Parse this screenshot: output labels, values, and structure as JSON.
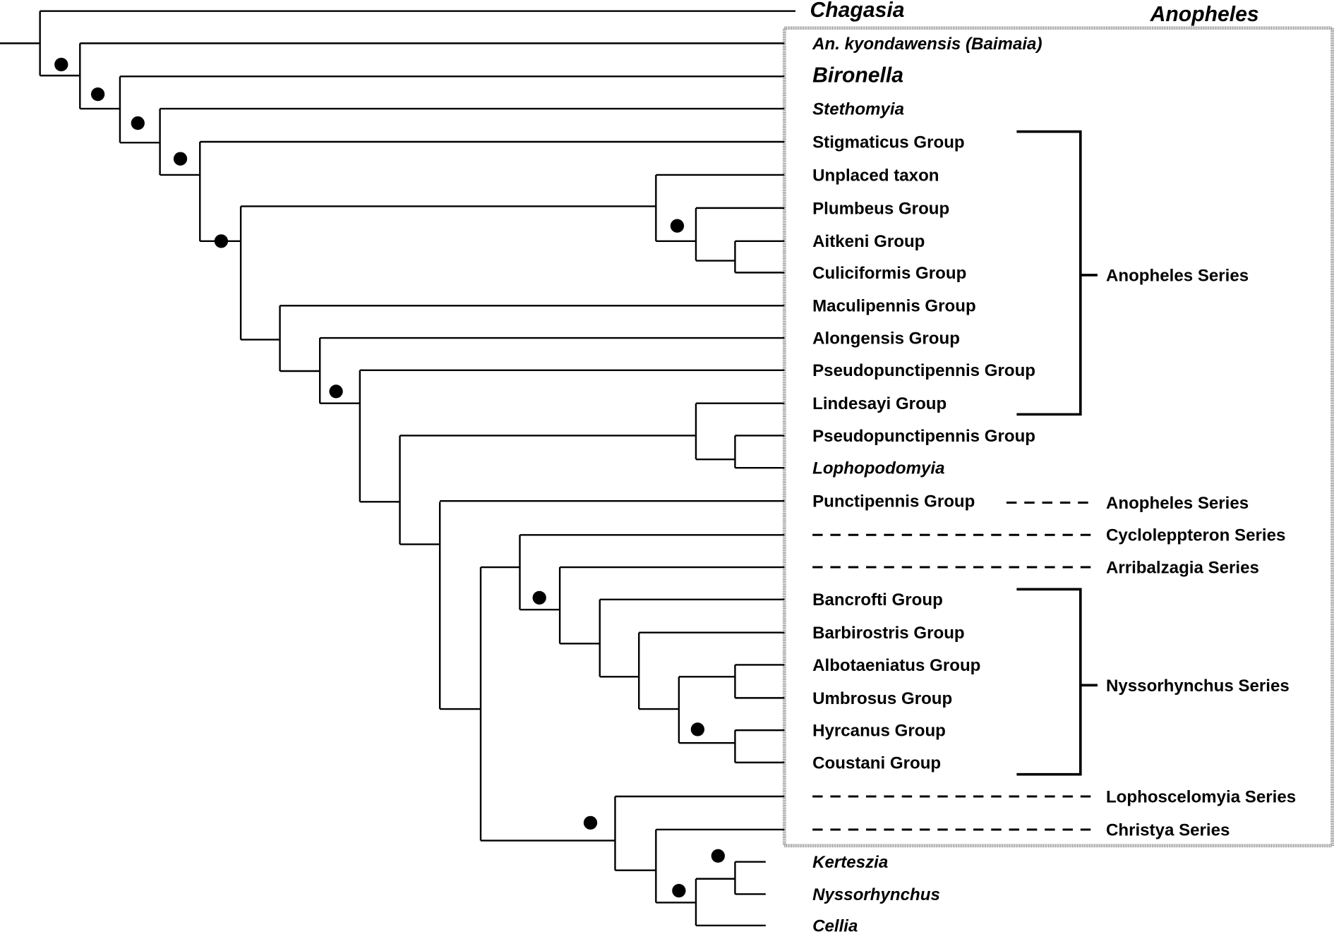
{
  "title": "Anopheles",
  "leaves": [
    {
      "label": "Chagasia",
      "italic": true,
      "big": true
    },
    {
      "label": "An. kyondawensis (Baimaia)",
      "italic": true
    },
    {
      "label": "Bironella",
      "italic": true,
      "big": true
    },
    {
      "label": "Stethomyia",
      "italic": true
    },
    {
      "label": "Stigmaticus Group"
    },
    {
      "label": "Unplaced taxon"
    },
    {
      "label": "Plumbeus Group"
    },
    {
      "label": "Aitkeni Group"
    },
    {
      "label": "Culiciformis Group"
    },
    {
      "label": "Maculipennis Group"
    },
    {
      "label": "Alongensis Group"
    },
    {
      "label": "Pseudopunctipennis Group"
    },
    {
      "label": "Lindesayi Group"
    },
    {
      "label": "Pseudopunctipennis Group"
    },
    {
      "label": "Lophopodomyia",
      "italic": true
    },
    {
      "label": "Punctipennis Group"
    },
    {
      "label": ""
    },
    {
      "label": ""
    },
    {
      "label": "Bancrofti Group"
    },
    {
      "label": "Barbirostris Group"
    },
    {
      "label": "Albotaeniatus Group"
    },
    {
      "label": "Umbrosus Group"
    },
    {
      "label": "Hyrcanus Group"
    },
    {
      "label": "Coustani Group"
    },
    {
      "label": ""
    },
    {
      "label": ""
    },
    {
      "label": "Kerteszia",
      "italic": true
    },
    {
      "label": "Nyssorhynchus",
      "italic": true
    },
    {
      "label": "Cellia",
      "italic": true
    }
  ],
  "series": [
    {
      "label": "Anopheles Series",
      "type": "bracket"
    },
    {
      "label": "Anopheles Series",
      "type": "dashed"
    },
    {
      "label": "Cycloleppteron Series",
      "type": "dashed"
    },
    {
      "label": "Arribalzagia Series",
      "type": "dashed"
    },
    {
      "label": "Nyssorhynchus  Series",
      "type": "bracket"
    },
    {
      "label": "Lophoscelomyia Series",
      "type": "dashed"
    },
    {
      "label": "Christya Series",
      "type": "dashed"
    }
  ]
}
